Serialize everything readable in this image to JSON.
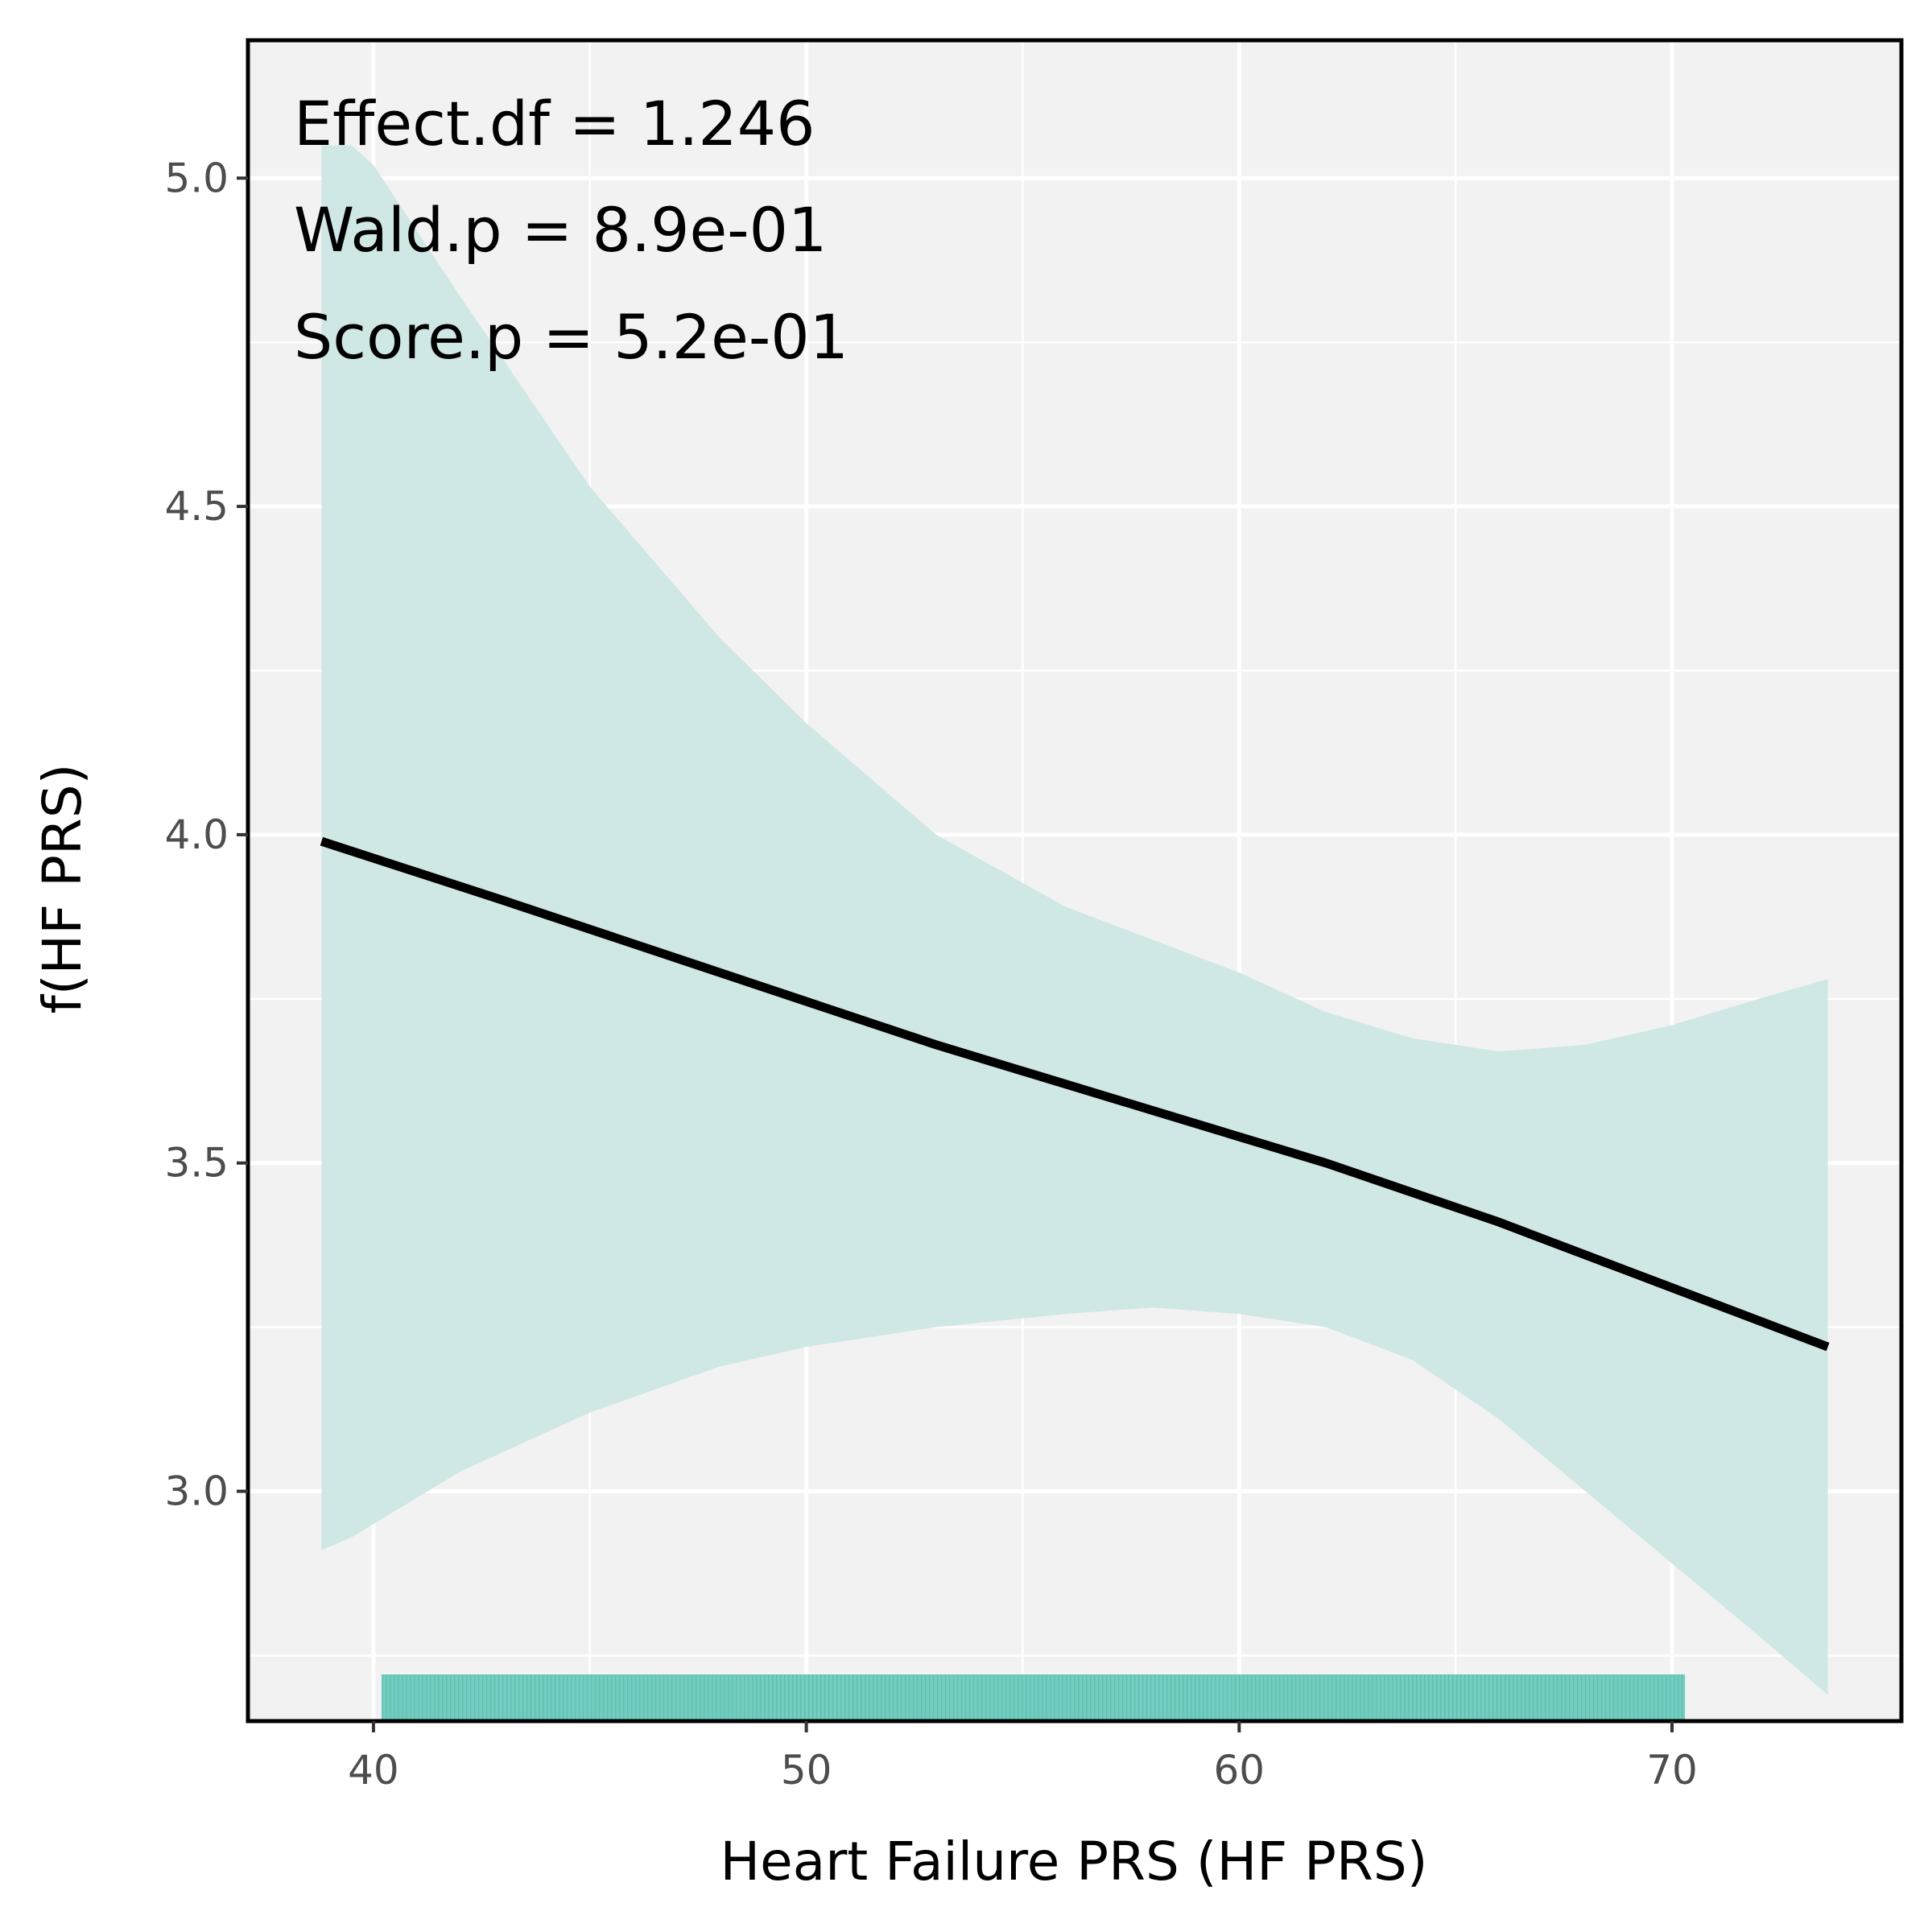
{
  "chart_data": {
    "type": "line",
    "xlabel": "Heart Failure PRS (HF PRS)",
    "ylabel": "f(HF PRS)",
    "xlim": [
      37.1,
      75.3
    ],
    "ylim": [
      2.65,
      5.21
    ],
    "x_ticks": [
      40,
      50,
      60,
      70
    ],
    "x_tick_labels": [
      "40",
      "50",
      "60",
      "70"
    ],
    "y_ticks": [
      3.0,
      3.5,
      4.0,
      4.5,
      5.0
    ],
    "y_tick_labels": [
      "3.0",
      "3.5",
      "4.0",
      "4.5",
      "5.0"
    ],
    "grid": true,
    "annotations": [
      "Effect.df = 1.246",
      "Wald.p = 8.9e-01",
      "Score.p = 5.2e-01"
    ],
    "fit_line": {
      "x": [
        38.8,
        43.0,
        48.0,
        53.0,
        58.0,
        62.0,
        66.0,
        70.0,
        73.6
      ],
      "y": [
        3.99,
        3.9,
        3.79,
        3.68,
        3.58,
        3.5,
        3.41,
        3.31,
        3.22
      ]
    },
    "ci_band": {
      "x": [
        38.8,
        39.5,
        40.0,
        42.0,
        45.0,
        48.0,
        50.0,
        53.0,
        56.0,
        58.0,
        60.0,
        62.0,
        64.0,
        66.0,
        68.0,
        70.0,
        72.0,
        73.6
      ],
      "upper": [
        5.05,
        5.05,
        5.02,
        4.82,
        4.53,
        4.3,
        4.17,
        4.0,
        3.89,
        3.84,
        3.79,
        3.73,
        3.69,
        3.67,
        3.68,
        3.71,
        3.75,
        3.78
      ],
      "lower": [
        2.91,
        2.93,
        2.95,
        3.03,
        3.12,
        3.19,
        3.22,
        3.25,
        3.27,
        3.28,
        3.27,
        3.25,
        3.2,
        3.11,
        3.0,
        2.89,
        2.78,
        2.69
      ]
    },
    "rug": {
      "x_min": 40.2,
      "x_max": 70.3
    },
    "colors": {
      "panel_background": "#f2f2f2",
      "grid": "#ffffff",
      "ci_band": "#cfe8e5",
      "fit_line": "#000000",
      "rug": "#66c9b9",
      "border": "#000000"
    }
  }
}
